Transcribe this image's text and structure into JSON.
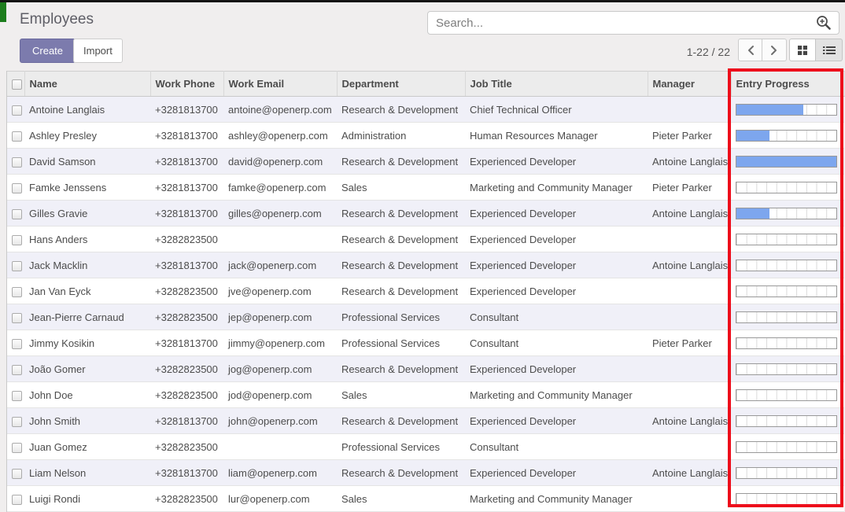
{
  "window": {
    "top_strip_color": "#141414",
    "green_accent_color": "#1d7d1d"
  },
  "header": {
    "title": "Employees",
    "search": {
      "placeholder": "Search...",
      "icon": "magnifier-plus"
    },
    "create_label": "Create",
    "import_label": "Import",
    "pager": {
      "range_text": "1-22 / 22"
    },
    "view_switcher": {
      "kanban_active": false,
      "list_active": true
    }
  },
  "table": {
    "columns": [
      "Name",
      "Work Phone",
      "Work Email",
      "Department",
      "Job Title",
      "Manager",
      "Entry Progress"
    ],
    "rows": [
      {
        "name": "Antoine Langlais",
        "work_phone": "+3281813700",
        "work_email": "antoine@openerp.com",
        "department": "Research & Development",
        "job_title": "Chief Technical Officer",
        "manager": "",
        "entry_progress": 67
      },
      {
        "name": "Ashley Presley",
        "work_phone": "+3281813700",
        "work_email": "ashley@openerp.com",
        "department": "Administration",
        "job_title": "Human Resources Manager",
        "manager": "Pieter Parker",
        "entry_progress": 33
      },
      {
        "name": "David Samson",
        "work_phone": "+3281813700",
        "work_email": "david@openerp.com",
        "department": "Research & Development",
        "job_title": "Experienced Developer",
        "manager": "Antoine Langlais",
        "entry_progress": 100
      },
      {
        "name": "Famke Jenssens",
        "work_phone": "+3281813700",
        "work_email": "famke@openerp.com",
        "department": "Sales",
        "job_title": "Marketing and Community Manager",
        "manager": "Pieter Parker",
        "entry_progress": 0
      },
      {
        "name": "Gilles Gravie",
        "work_phone": "+3281813700",
        "work_email": "gilles@openerp.com",
        "department": "Research & Development",
        "job_title": "Experienced Developer",
        "manager": "Antoine Langlais",
        "entry_progress": 33
      },
      {
        "name": "Hans Anders",
        "work_phone": "+3282823500",
        "work_email": "",
        "department": "Research & Development",
        "job_title": "Experienced Developer",
        "manager": "",
        "entry_progress": 0
      },
      {
        "name": "Jack Macklin",
        "work_phone": "+3281813700",
        "work_email": "jack@openerp.com",
        "department": "Research & Development",
        "job_title": "Experienced Developer",
        "manager": "Antoine Langlais",
        "entry_progress": 0
      },
      {
        "name": "Jan Van Eyck",
        "work_phone": "+3282823500",
        "work_email": "jve@openerp.com",
        "department": "Research & Development",
        "job_title": "Experienced Developer",
        "manager": "",
        "entry_progress": 0
      },
      {
        "name": "Jean-Pierre Carnaud",
        "work_phone": "+3282823500",
        "work_email": "jep@openerp.com",
        "department": "Professional Services",
        "job_title": "Consultant",
        "manager": "",
        "entry_progress": 0
      },
      {
        "name": "Jimmy Kosikin",
        "work_phone": "+3281813700",
        "work_email": "jimmy@openerp.com",
        "department": "Professional Services",
        "job_title": "Consultant",
        "manager": "Pieter Parker",
        "entry_progress": 0
      },
      {
        "name": "João Gomer",
        "work_phone": "+3282823500",
        "work_email": "jog@openerp.com",
        "department": "Research & Development",
        "job_title": "Experienced Developer",
        "manager": "",
        "entry_progress": 0
      },
      {
        "name": "John Doe",
        "work_phone": "+3282823500",
        "work_email": "jod@openerp.com",
        "department": "Sales",
        "job_title": "Marketing and Community Manager",
        "manager": "",
        "entry_progress": 0
      },
      {
        "name": "John Smith",
        "work_phone": "+3281813700",
        "work_email": "john@openerp.com",
        "department": "Research & Development",
        "job_title": "Experienced Developer",
        "manager": "Antoine Langlais",
        "entry_progress": 0
      },
      {
        "name": "Juan Gomez",
        "work_phone": "+3282823500",
        "work_email": "",
        "department": "Professional Services",
        "job_title": "Consultant",
        "manager": "",
        "entry_progress": 0
      },
      {
        "name": "Liam Nelson",
        "work_phone": "+3281813700",
        "work_email": "liam@openerp.com",
        "department": "Research & Development",
        "job_title": "Experienced Developer",
        "manager": "Antoine Langlais",
        "entry_progress": 0
      },
      {
        "name": "Luigi Rondi",
        "work_phone": "+3282823500",
        "work_email": "lur@openerp.com",
        "department": "Sales",
        "job_title": "Marketing and Community Manager",
        "manager": "",
        "entry_progress": 0
      }
    ]
  },
  "annotation": {
    "highlighted_column": "Entry Progress",
    "highlight_color": "#ed0d1b"
  },
  "colors": {
    "create_button": "#7c7bad",
    "progress_fill": "#7da6ee",
    "row_alt_background": "#f0f0f8",
    "table_header_background": "#ececec"
  }
}
